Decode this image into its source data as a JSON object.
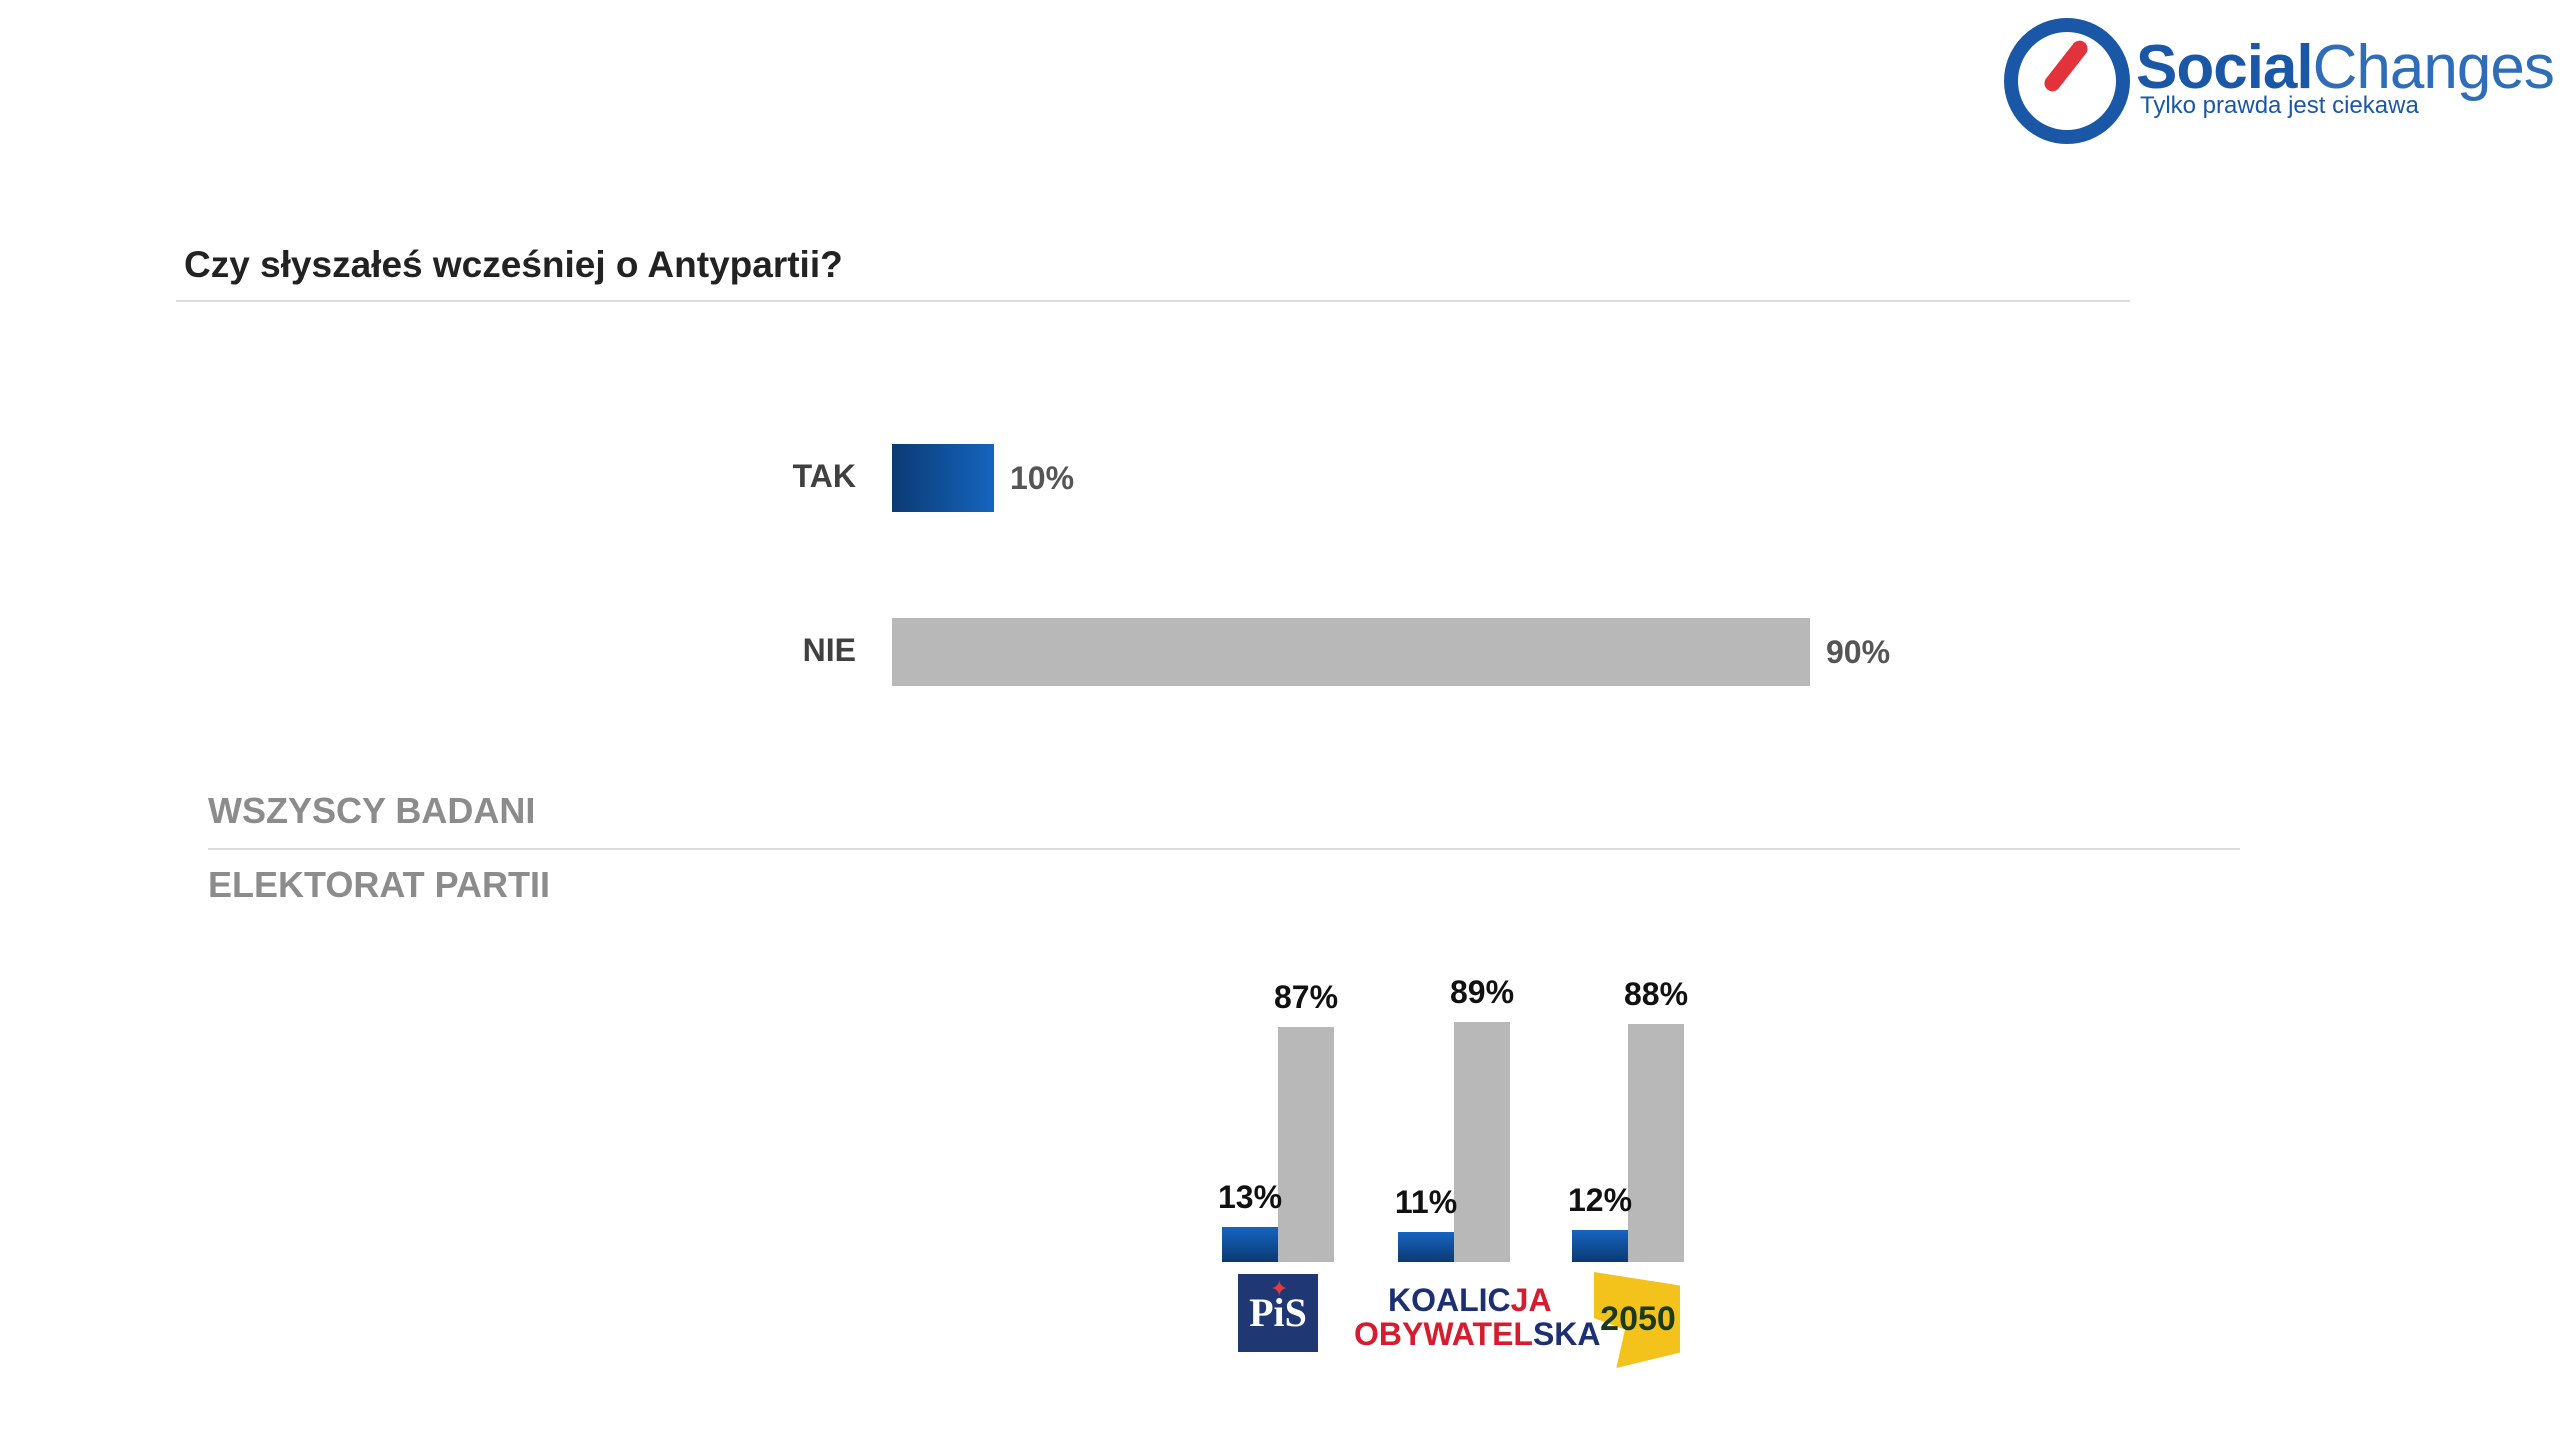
{
  "logo": {
    "name_bold": "Social",
    "name_regular": "Changes",
    "tagline": "Tylko prawda jest ciekawa"
  },
  "title": "Czy słyszałeś wcześniej o Antypartii?",
  "sections": {
    "all": "WSZYSCY BADANI",
    "parties": "ELEKTORAT PARTII"
  },
  "party_logos": {
    "pis": "PiS",
    "ko_line1_a": "KOALIC",
    "ko_line1_b": "JA",
    "ko_line2_a": "OBYWATEL",
    "ko_line2_b": "SKA",
    "p2050": "2050"
  },
  "colors": {
    "tak": "#1565c0",
    "tak_dark": "#0b3a73",
    "nie": "#b8b8b8"
  },
  "chart_data": [
    {
      "type": "bar",
      "orientation": "horizontal",
      "title": "Czy słyszałeś wcześniej o Antypartii?",
      "subtitle": "WSZYSCY BADANI",
      "categories": [
        "TAK",
        "NIE"
      ],
      "values": [
        10,
        90
      ],
      "value_labels": [
        "10%",
        "90%"
      ],
      "unit": "%",
      "xlim": [
        0,
        100
      ],
      "grid": false
    },
    {
      "type": "bar",
      "orientation": "vertical",
      "subtitle": "ELEKTORAT PARTII",
      "categories": [
        "PiS",
        "KOALICJA OBYWATELSKA",
        "2050"
      ],
      "series": [
        {
          "name": "TAK",
          "values": [
            13,
            11,
            12
          ],
          "labels": [
            "13%",
            "11%",
            "12%"
          ]
        },
        {
          "name": "NIE",
          "values": [
            87,
            89,
            88
          ],
          "labels": [
            "87%",
            "89%",
            "88%"
          ]
        }
      ],
      "unit": "%",
      "ylim": [
        0,
        100
      ],
      "grid": false
    }
  ]
}
